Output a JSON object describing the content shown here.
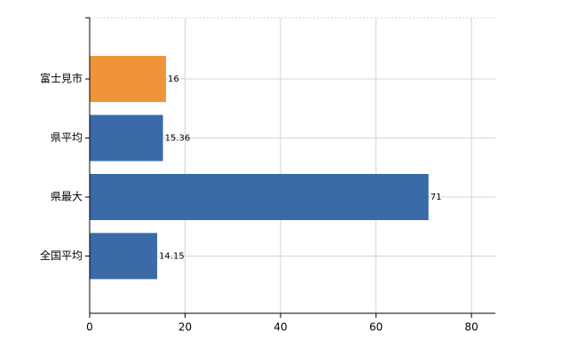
{
  "chart_data": {
    "type": "bar",
    "orientation": "horizontal",
    "categories": [
      "富士見市",
      "県平均",
      "県最大",
      "全国平均"
    ],
    "values": [
      16,
      15.36,
      71,
      14.15
    ],
    "colors": [
      "#f0943a",
      "#3a6aa8",
      "#3a6aa8",
      "#3a6aa8"
    ],
    "xlim": [
      0,
      85
    ],
    "xticks": [
      0,
      20,
      40,
      60,
      80
    ],
    "grid": true
  }
}
